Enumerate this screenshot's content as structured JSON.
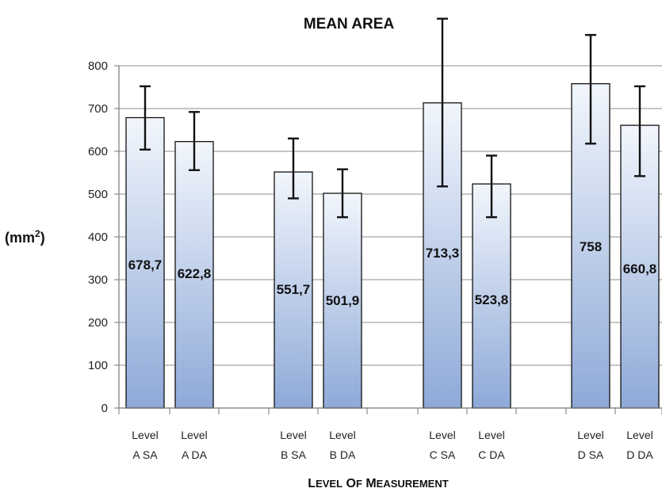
{
  "chart_data": {
    "type": "bar",
    "title": "MEAN AREA",
    "ylabel": "(mm²)",
    "xlabel": "Level of measurement",
    "ylim": [
      0,
      800
    ],
    "yticks": [
      0,
      100,
      200,
      300,
      400,
      500,
      600,
      700,
      800
    ],
    "grid": true,
    "categories": [
      {
        "line1": "Level",
        "line2": "A SA"
      },
      {
        "line1": "Level",
        "line2": "A DA"
      },
      {
        "line1": "Level",
        "line2": "B SA"
      },
      {
        "line1": "Level",
        "line2": "B DA"
      },
      {
        "line1": "Level",
        "line2": "C SA"
      },
      {
        "line1": "Level",
        "line2": "C DA"
      },
      {
        "line1": "Level",
        "line2": "D SA"
      },
      {
        "line1": "Level",
        "line2": "D DA"
      }
    ],
    "groups": [
      "A",
      "B",
      "C",
      "D"
    ],
    "values": [
      678.7,
      622.8,
      551.7,
      501.9,
      713.3,
      523.8,
      758,
      660.8
    ],
    "data_labels": [
      "678,7",
      "622,8",
      "551,7",
      "501,9",
      "713,3",
      "523,8",
      "758",
      "660,8"
    ],
    "error_high": [
      752,
      692,
      630,
      558,
      910,
      590,
      872,
      752
    ],
    "error_low": [
      604,
      556,
      490,
      446,
      518,
      446,
      618,
      542
    ],
    "colors": {
      "bar_top": "#f2f6fc",
      "bar_bottom": "#8ea9d8",
      "bar_edge": "#111111",
      "grid": "#8c8c8c"
    }
  }
}
